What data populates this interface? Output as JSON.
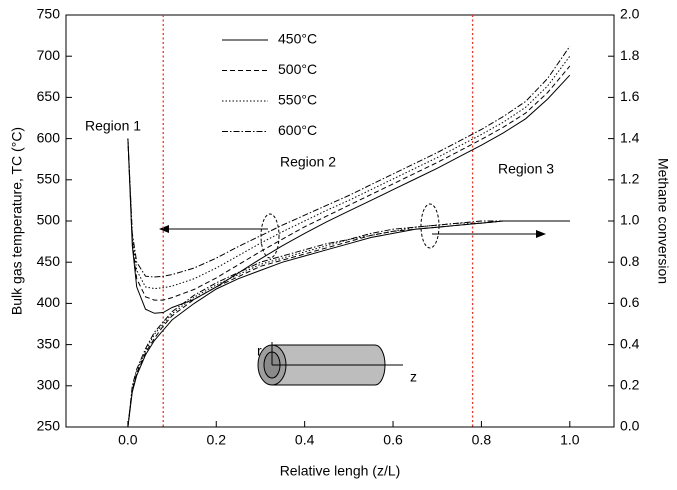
{
  "chart_data": {
    "type": "line",
    "x_label": "Relative lengh (z/L)",
    "y_label": "Bulk gas temperature, TC (°C)",
    "y2_label": "Methane conversion",
    "xlim": [
      -0.14,
      1.1
    ],
    "xticks": [
      {
        "value": 0,
        "label": "0.0"
      },
      0.2,
      0.4,
      0.6,
      0.8,
      {
        "value": 1,
        "label": "1.0"
      }
    ],
    "ylim": [
      250,
      750
    ],
    "yticks": [
      250,
      300,
      350,
      400,
      450,
      500,
      550,
      600,
      650,
      700,
      750
    ],
    "y2lim": [
      0,
      2
    ],
    "y2ticks": [
      {
        "value": 0,
        "label": "0.0"
      },
      0.2,
      0.4,
      0.6,
      0.8,
      {
        "value": 1,
        "label": "1.0"
      },
      1.2,
      1.4,
      1.6,
      1.8,
      {
        "value": 2,
        "label": "2.0"
      }
    ],
    "region_bounds": [
      0.08,
      0.78
    ],
    "region_color": "#e8332a",
    "annotations": [
      "Region 1",
      "Region 2",
      "Region 3",
      "r",
      "z"
    ],
    "x": [
      0,
      0.01,
      0.02,
      0.04,
      0.06,
      0.08,
      0.1,
      0.15,
      0.2,
      0.25,
      0.3,
      0.35,
      0.4,
      0.45,
      0.5,
      0.55,
      0.6,
      0.65,
      0.7,
      0.75,
      0.8,
      0.85,
      0.9,
      0.95,
      1
    ],
    "series": [
      {
        "name": "450°C",
        "color": "#000000",
        "dash": "none",
        "values": [
          600,
          470,
          420,
          393,
          388,
          389,
          395,
          405,
          420,
          437,
          454,
          470,
          485,
          499,
          512,
          525,
          538,
          551,
          564,
          578,
          592,
          607,
          624,
          648,
          677
        ]
      },
      {
        "name": "500°C",
        "color": "#000000",
        "dash": "5,3",
        "values": [
          600,
          475,
          430,
          408,
          404,
          404,
          407,
          417,
          431,
          447,
          463,
          478,
          493,
          506,
          519,
          532,
          545,
          558,
          571,
          585,
          599,
          614,
          631,
          656,
          688
        ]
      },
      {
        "name": "550°C",
        "color": "#000000",
        "dash": "1.5,2",
        "values": [
          600,
          480,
          440,
          420,
          418,
          419,
          421,
          430,
          443,
          458,
          473,
          487,
          500,
          513,
          525,
          538,
          551,
          564,
          577,
          591,
          605,
          620,
          638,
          664,
          700
        ]
      },
      {
        "name": "600°C",
        "color": "#000000",
        "dash": "6,2,1.5,2",
        "values": [
          600,
          485,
          450,
          433,
          432,
          433,
          435,
          443,
          455,
          469,
          482,
          495,
          507,
          519,
          531,
          544,
          557,
          570,
          583,
          597,
          611,
          627,
          645,
          673,
          712
        ]
      },
      {
        "color": "#000000",
        "dash": "none",
        "axis": "y2",
        "values": [
          0,
          0.17,
          0.25,
          0.35,
          0.42,
          0.47,
          0.52,
          0.6,
          0.67,
          0.72,
          0.76,
          0.8,
          0.83,
          0.86,
          0.89,
          0.92,
          0.94,
          0.96,
          0.97,
          0.98,
          0.99,
          1.0,
          1.0,
          1.0,
          1.0
        ]
      },
      {
        "color": "#000000",
        "dash": "5,3",
        "axis": "y2",
        "values": [
          0,
          0.18,
          0.26,
          0.36,
          0.43,
          0.49,
          0.54,
          0.62,
          0.68,
          0.73,
          0.78,
          0.81,
          0.84,
          0.87,
          0.9,
          0.93,
          0.95,
          0.96,
          0.97,
          0.98,
          0.99,
          1.0,
          1.0,
          1.0,
          1.0
        ]
      },
      {
        "color": "#000000",
        "dash": "1.5,2",
        "axis": "y2",
        "values": [
          0,
          0.19,
          0.27,
          0.37,
          0.45,
          0.5,
          0.55,
          0.63,
          0.69,
          0.74,
          0.79,
          0.82,
          0.85,
          0.88,
          0.91,
          0.93,
          0.95,
          0.97,
          0.98,
          0.99,
          0.99,
          1.0,
          1.0,
          1.0,
          1.0
        ]
      },
      {
        "color": "#000000",
        "dash": "6,2,1.5,2",
        "axis": "y2",
        "values": [
          0,
          0.2,
          0.28,
          0.38,
          0.46,
          0.51,
          0.56,
          0.64,
          0.7,
          0.75,
          0.8,
          0.83,
          0.86,
          0.89,
          0.91,
          0.94,
          0.96,
          0.97,
          0.98,
          0.99,
          1.0,
          1.0,
          1.0,
          1.0,
          1.0
        ]
      }
    ]
  }
}
